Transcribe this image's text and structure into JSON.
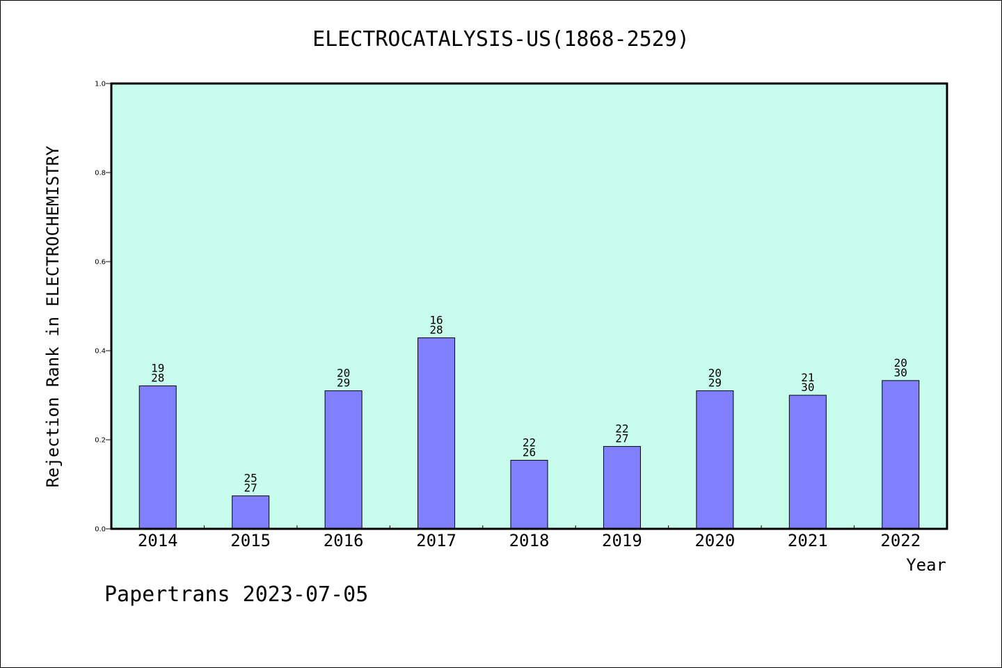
{
  "footer": "Papertrans 2023-07-05",
  "colors": {
    "plot_background": "#c8fdee",
    "bar_fill": "#8080ff",
    "bar_stroke": "#000000",
    "axis": "#000000"
  },
  "chart_data": {
    "type": "bar",
    "title": "ELECTROCATALYSIS-US(1868-2529)",
    "xlabel": "Year",
    "ylabel": "Rejection Rank in ELECTROCHEMISTRY",
    "ylim": [
      0,
      1.0
    ],
    "yticks": [
      "0.0",
      "0.2",
      "0.4",
      "0.6",
      "0.8",
      "1.0"
    ],
    "grid": false,
    "categories": [
      "2014",
      "2015",
      "2016",
      "2017",
      "2018",
      "2019",
      "2020",
      "2021",
      "2022"
    ],
    "values": [
      0.321,
      0.074,
      0.31,
      0.429,
      0.154,
      0.185,
      0.31,
      0.3,
      0.333
    ],
    "bar_labels": [
      [
        "19",
        "28"
      ],
      [
        "25",
        "27"
      ],
      [
        "20",
        "29"
      ],
      [
        "16",
        "28"
      ],
      [
        "22",
        "26"
      ],
      [
        "22",
        "27"
      ],
      [
        "20",
        "29"
      ],
      [
        "21",
        "30"
      ],
      [
        "20",
        "30"
      ]
    ]
  }
}
